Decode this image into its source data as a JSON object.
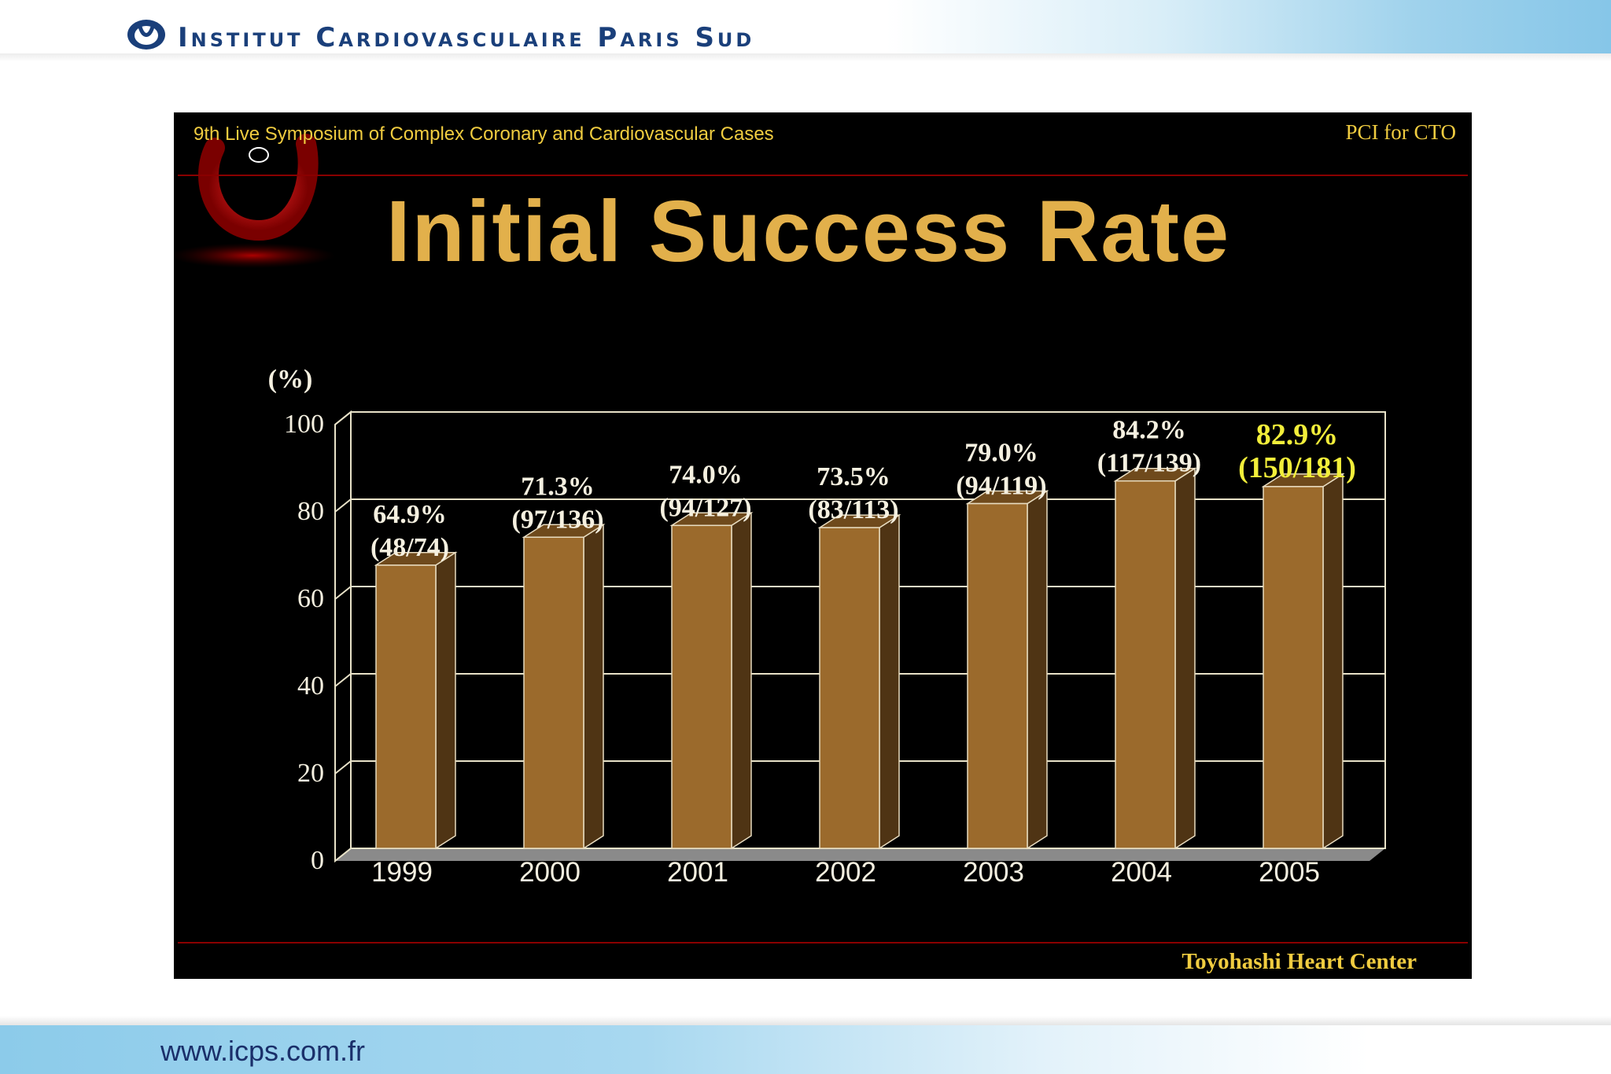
{
  "header": {
    "institution": "Institut Cardiovasculaire Paris Sud"
  },
  "footer": {
    "url": "www.icps.com.fr"
  },
  "slide": {
    "symposium": "9th Live Symposium of Complex Coronary and Cardiovascular Cases",
    "topic": "PCI for CTO",
    "credit": "Toyohashi Heart Center"
  },
  "colors": {
    "bar": "#9b6a2c",
    "bar_top": "#6f4a1c",
    "bar_side": "#4f3414",
    "label": "#f5f0e0",
    "highlight": "#f2ee3a",
    "title": "#e2b04b"
  },
  "chart_data": {
    "type": "bar",
    "title": "Initial Success Rate",
    "ylabel": "(%)",
    "ylim": [
      0,
      100
    ],
    "yticks": [
      0,
      20,
      40,
      60,
      80,
      100
    ],
    "grid": true,
    "categories": [
      "1999",
      "2000",
      "2001",
      "2002",
      "2003",
      "2004",
      "2005"
    ],
    "values": [
      64.9,
      71.3,
      74.0,
      73.5,
      79.0,
      84.2,
      82.9
    ],
    "value_labels": [
      "64.9%",
      "71.3%",
      "74.0%",
      "73.5%",
      "79.0%",
      "84.2%",
      "82.9%"
    ],
    "count_labels": [
      "(48/74)",
      "(97/136)",
      "(94/127)",
      "(83/113)",
      "(94/119)",
      "(117/139)",
      "(150/181)"
    ],
    "highlight": "2005"
  }
}
